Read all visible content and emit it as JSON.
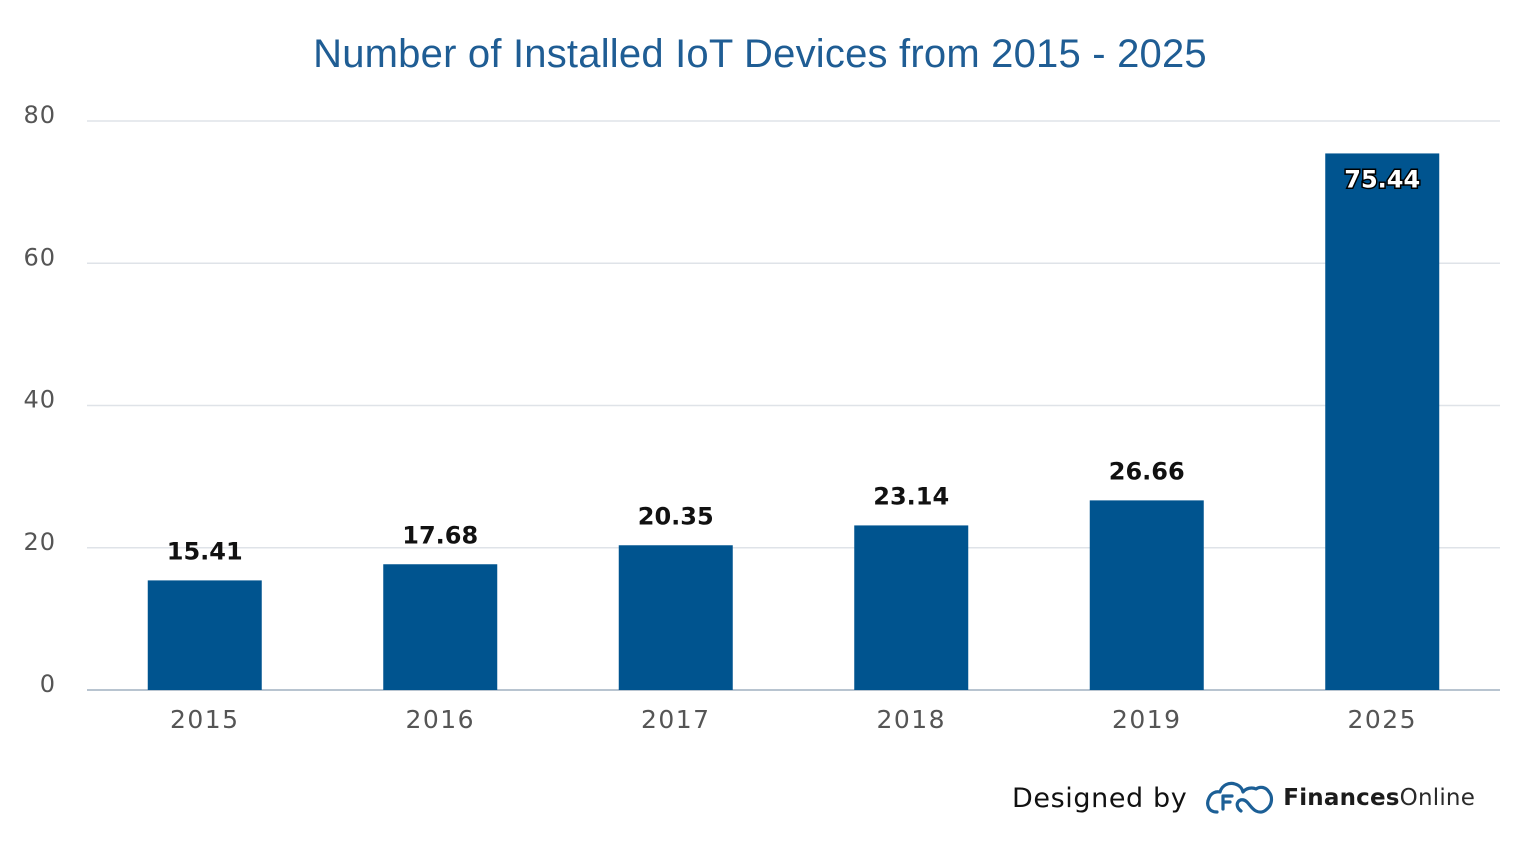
{
  "chart_data": {
    "type": "bar",
    "title": "Number of Installed IoT Devices from 2015 - 2025",
    "xlabel": "",
    "ylabel": "",
    "categories": [
      "2015",
      "2016",
      "2017",
      "2018",
      "2019",
      "2025"
    ],
    "values": [
      15.41,
      17.68,
      20.35,
      23.14,
      26.66,
      75.44
    ],
    "data_labels": [
      "15.41",
      "17.68",
      "20.35",
      "23.14",
      "26.66",
      "75.44"
    ],
    "yticks": [
      "0",
      "20",
      "40",
      "60",
      "80"
    ],
    "ylim": [
      0,
      80
    ],
    "grid": true,
    "legend": "none",
    "colors": {
      "bar": "#00548f",
      "title": "#1f5d94",
      "grid": "#dfe3e8",
      "axis": "#b8c4d0",
      "tick_text": "#555555",
      "label_text": "#111111",
      "inside_label_text": "#ffffff"
    }
  },
  "credit": {
    "prefix": "Designed by",
    "brand_bold": "Finances",
    "brand_light": "Online",
    "icon": "cloud-f-logo-icon",
    "icon_color": "#1c5f96"
  }
}
